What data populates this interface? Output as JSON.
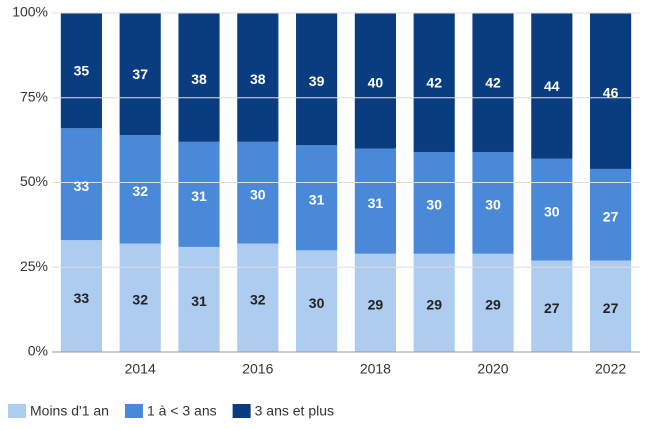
{
  "chart_data": {
    "type": "stacked_bar",
    "categories": [
      null,
      "2014",
      null,
      "2016",
      null,
      "2018",
      null,
      "2020",
      null,
      "2022"
    ],
    "series": [
      {
        "name": "Moins d'1 an",
        "color": "#aecbf0",
        "values": [
          33,
          32,
          31,
          32,
          30,
          29,
          29,
          29,
          27,
          27
        ]
      },
      {
        "name": "1 à < 3 ans",
        "color": "#4a88d8",
        "values": [
          33,
          32,
          31,
          30,
          31,
          31,
          30,
          30,
          30,
          27
        ]
      },
      {
        "name": "3 ans et plus",
        "color": "#0a3d80",
        "values": [
          35,
          37,
          38,
          38,
          39,
          40,
          42,
          42,
          44,
          46
        ]
      }
    ],
    "ylim": [
      0,
      100
    ],
    "yticks": [
      {
        "value": 0,
        "label": "0%"
      },
      {
        "value": 25,
        "label": "25%"
      },
      {
        "value": 50,
        "label": "50%"
      },
      {
        "value": 75,
        "label": "75%"
      },
      {
        "value": 100,
        "label": "100%"
      }
    ],
    "grid": true,
    "legend": "bottom"
  }
}
